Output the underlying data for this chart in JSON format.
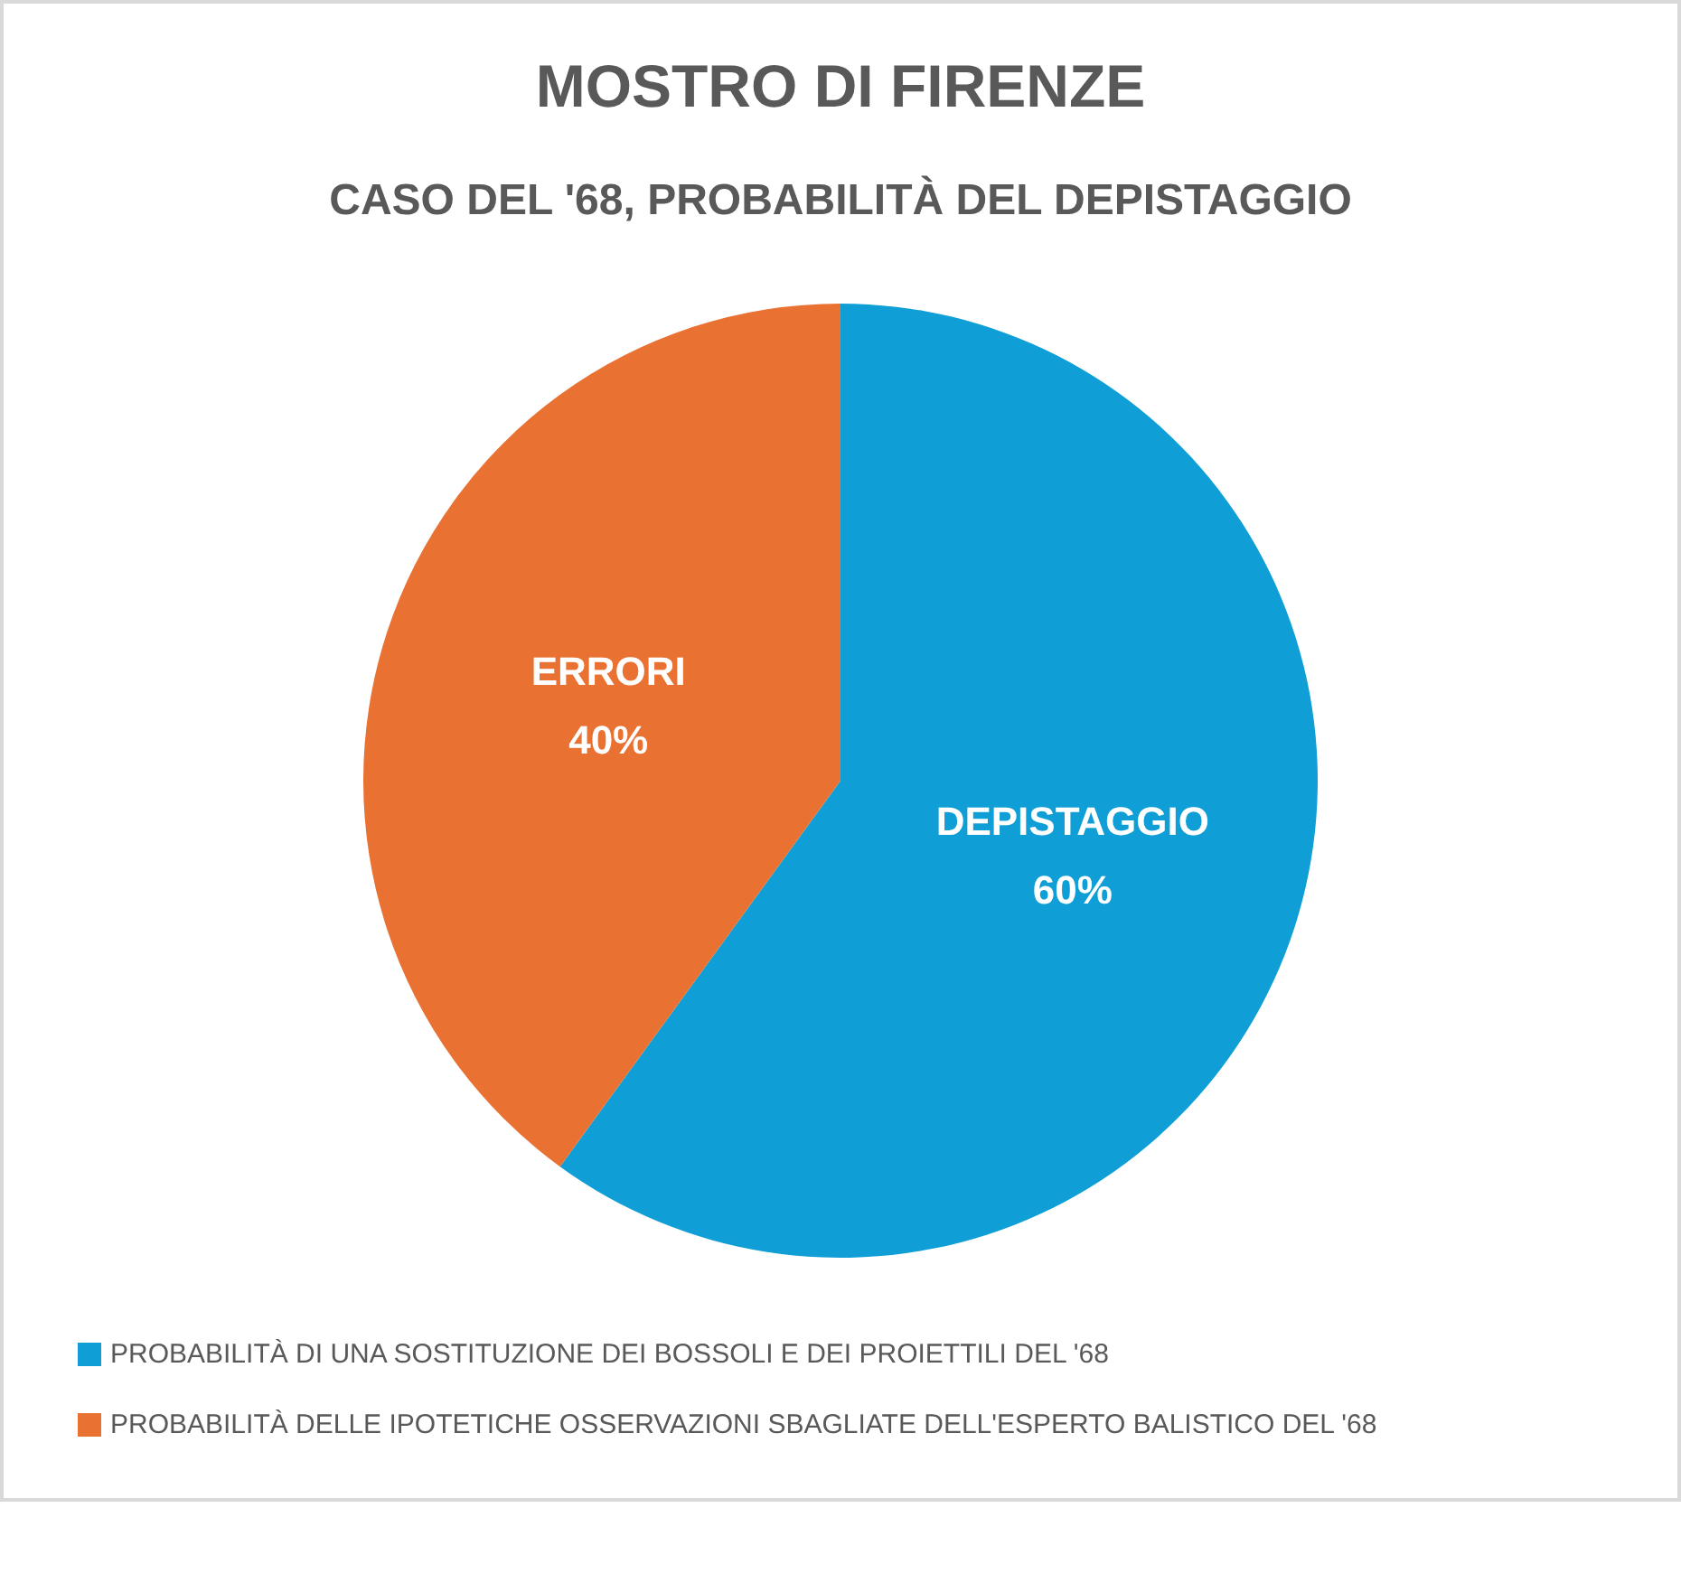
{
  "chart_data": {
    "type": "pie",
    "title": "MOSTRO DI FIRENZE",
    "subtitle": "CASO DEL '68, PROBABILITÀ DEL DEPISTAGGIO",
    "categories": [
      "PROBABILITÀ DI UNA SOSTITUZIONE DEI BOSSOLI E DEI PROIETTILI DEL '68",
      "PROBABILITÀ DELLE IPOTETICHE OSSERVAZIONI SBAGLIATE DELL'ESPERTO BALISTICO DEL '68"
    ],
    "values": [
      60,
      40
    ],
    "colors": [
      "#0f9ed5",
      "#e97132"
    ],
    "value_labels": [
      "DEPISTAGGIO\n60%",
      "ERRORI\n40%"
    ],
    "legend": "bottom left"
  }
}
